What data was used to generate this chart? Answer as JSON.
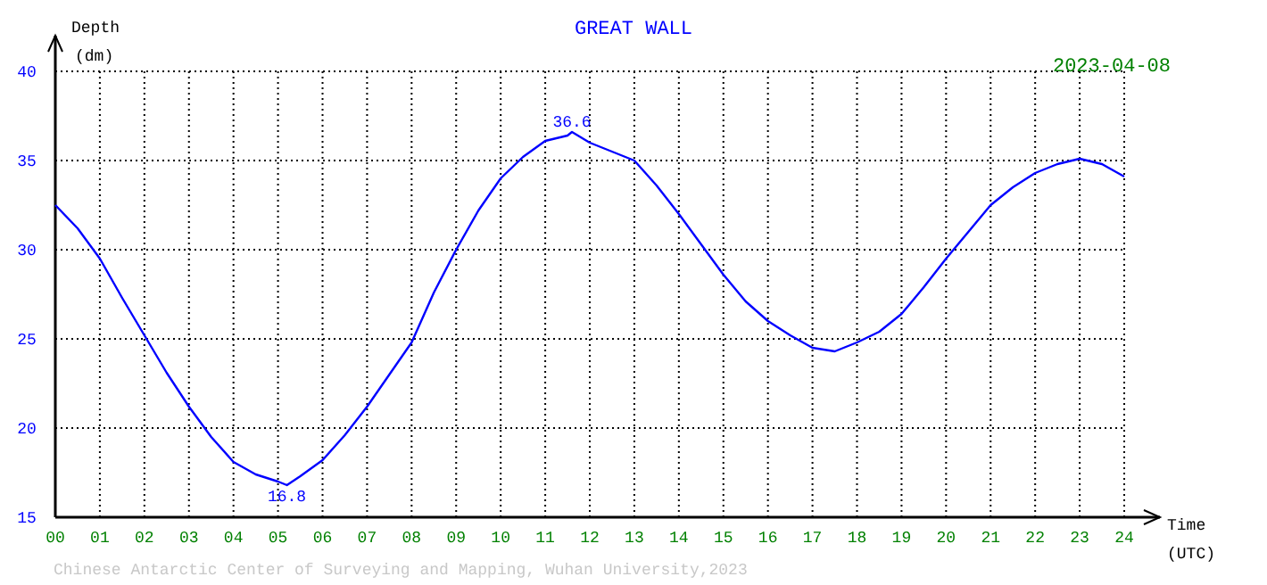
{
  "chart_data": {
    "type": "line",
    "title": "GREAT WALL",
    "subtitle": "2023-04-08",
    "xlabel": "Time (UTC)",
    "ylabel": "Depth (dm)",
    "x": [
      0,
      0.5,
      1,
      1.5,
      2,
      2.5,
      3,
      3.5,
      4,
      4.5,
      5,
      5.2,
      5.5,
      6,
      6.5,
      7,
      7.5,
      8,
      8.5,
      9,
      9.5,
      10,
      10.5,
      11,
      11.5,
      11.6,
      12,
      12.5,
      13,
      13.5,
      14,
      14.5,
      15,
      15.5,
      16,
      16.5,
      17,
      17.5,
      18,
      18.5,
      19,
      19.5,
      20,
      20.5,
      21,
      21.5,
      22,
      22.5,
      23,
      23.5,
      24
    ],
    "series": [
      {
        "color": "#0000ff",
        "values": [
          32.5,
          31.2,
          29.5,
          27.3,
          25.2,
          23.1,
          21.2,
          19.5,
          18.1,
          17.4,
          17.0,
          16.8,
          17.3,
          18.2,
          19.6,
          21.2,
          23.0,
          24.8,
          27.6,
          30.0,
          32.2,
          34.0,
          35.2,
          36.1,
          36.4,
          36.6,
          36.0,
          35.5,
          35.0,
          33.6,
          32.0,
          30.3,
          28.6,
          27.1,
          26.0,
          25.2,
          24.5,
          24.3,
          24.8,
          25.4,
          26.4,
          27.9,
          29.5,
          31.0,
          32.5,
          33.5,
          34.3,
          34.8,
          35.1,
          34.8,
          34.1
        ]
      }
    ],
    "xlim": [
      0,
      24
    ],
    "ylim": [
      15,
      40
    ],
    "xticks": [
      {
        "value": 0,
        "label": "00"
      },
      {
        "value": 1,
        "label": "01"
      },
      {
        "value": 2,
        "label": "02"
      },
      {
        "value": 3,
        "label": "03"
      },
      {
        "value": 4,
        "label": "04"
      },
      {
        "value": 5,
        "label": "05"
      },
      {
        "value": 6,
        "label": "06"
      },
      {
        "value": 7,
        "label": "07"
      },
      {
        "value": 8,
        "label": "08"
      },
      {
        "value": 9,
        "label": "09"
      },
      10,
      11,
      12,
      13,
      14,
      15,
      16,
      17,
      18,
      19,
      20,
      21,
      22,
      23,
      24
    ],
    "yticks": [
      15,
      20,
      25,
      30,
      35,
      40
    ],
    "grid": true,
    "line_style": "solid",
    "marker": "none",
    "annotations": [
      {
        "text": "36.6",
        "x": 11.6,
        "y": 36.6
      },
      {
        "text": "16.8",
        "x": 5.2,
        "y": 16.8
      },
      "Chinese Antarctic Center of Surveying and Mapping, Wuhan University,2023"
    ]
  }
}
